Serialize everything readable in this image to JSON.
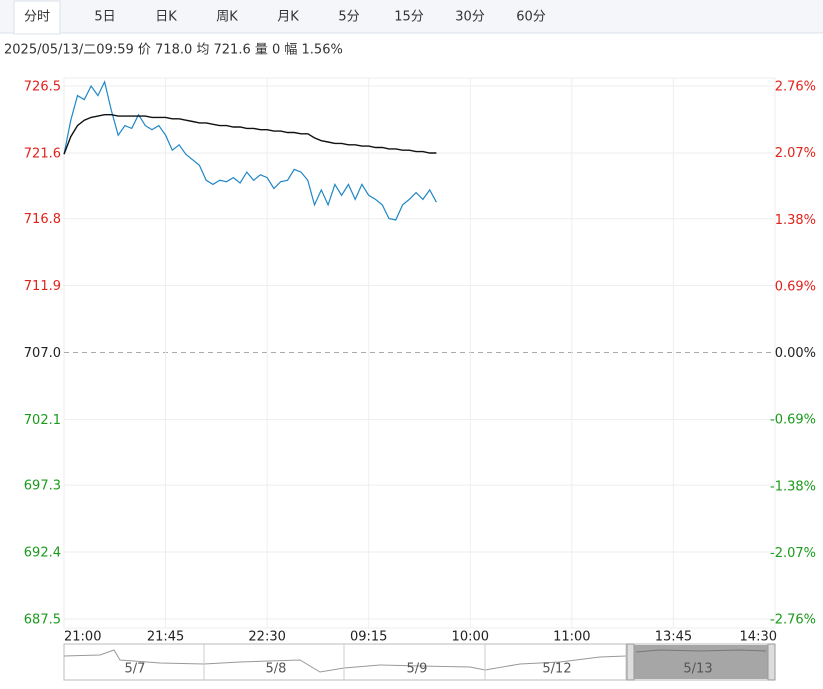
{
  "tabs": [
    "分时",
    "5日",
    "日K",
    "周K",
    "月K",
    "5分",
    "15分",
    "30分",
    "60分"
  ],
  "info": "2025/05/13/二09:59  价 718.0  均 721.6  量 0  幅 1.56%",
  "navigator": {
    "labels": [
      "5/7",
      "5/8",
      "5/9",
      "5/12",
      "5/13"
    ]
  },
  "chart_data": {
    "type": "line",
    "x": [
      0,
      3,
      6,
      9,
      12,
      15,
      18,
      21,
      24,
      27,
      30,
      33,
      36,
      39,
      42,
      45,
      48,
      51,
      54,
      57,
      60,
      63,
      66,
      69,
      72,
      75,
      78,
      81,
      84,
      87,
      90,
      93,
      96,
      99,
      102,
      105,
      108,
      111,
      114,
      117,
      120,
      123,
      126,
      129,
      132,
      135,
      138,
      141,
      144,
      147,
      150,
      153,
      156,
      159,
      162,
      165
    ],
    "series": [
      {
        "color": "#1f87c6",
        "values": [
          721.5,
          724.0,
          725.8,
          725.5,
          726.5,
          725.8,
          726.8,
          724.7,
          722.9,
          723.6,
          723.4,
          724.4,
          723.6,
          723.3,
          723.6,
          722.9,
          721.8,
          722.2,
          721.5,
          721.1,
          720.7,
          719.6,
          719.3,
          719.6,
          719.5,
          719.8,
          719.4,
          720.2,
          719.6,
          720.0,
          719.8,
          719.0,
          719.5,
          719.6,
          720.4,
          720.2,
          719.6,
          717.8,
          718.9,
          717.8,
          719.3,
          718.5,
          719.3,
          718.2,
          719.3,
          718.5,
          718.2,
          717.8,
          716.8,
          716.7,
          717.8,
          718.2,
          718.7,
          718.2,
          718.9,
          718.0
        ]
      },
      {
        "color": "#111111",
        "values": [
          721.5,
          722.8,
          723.6,
          724.0,
          724.2,
          724.3,
          724.4,
          724.4,
          724.3,
          724.3,
          724.3,
          724.3,
          724.3,
          724.2,
          724.2,
          724.2,
          724.1,
          724.1,
          724.0,
          723.9,
          723.8,
          723.8,
          723.7,
          723.6,
          723.6,
          723.5,
          723.5,
          723.4,
          723.4,
          723.3,
          723.3,
          723.2,
          723.2,
          723.1,
          723.1,
          723.0,
          723.0,
          722.7,
          722.5,
          722.4,
          722.3,
          722.3,
          722.2,
          722.2,
          722.1,
          722.1,
          722.0,
          722.0,
          721.9,
          721.9,
          721.8,
          721.8,
          721.7,
          721.7,
          721.6,
          721.6
        ]
      }
    ],
    "xlim": [
      0,
      315
    ],
    "xticks": [
      {
        "value": 0,
        "label": "21:00"
      },
      {
        "value": 45,
        "label": "21:45"
      },
      {
        "value": 90,
        "label": "22:30"
      },
      {
        "value": 135,
        "label": "09:15"
      },
      {
        "value": 180,
        "label": "10:00"
      },
      {
        "value": 225,
        "label": "11:00"
      },
      {
        "value": 270,
        "label": "13:45"
      },
      {
        "value": 315,
        "label": "14:30"
      }
    ],
    "ylim": [
      687.5,
      726.5
    ],
    "yticks": [
      {
        "value": 726.5,
        "label": "726.5"
      },
      {
        "value": 721.6,
        "label": "721.6"
      },
      {
        "value": 716.8,
        "label": "716.8"
      },
      {
        "value": 711.9,
        "label": "711.9"
      },
      {
        "value": 707.0,
        "label": "707.0"
      },
      {
        "value": 702.1,
        "label": "702.1"
      },
      {
        "value": 697.3,
        "label": "697.3"
      },
      {
        "value": 692.4,
        "label": "692.4"
      },
      {
        "value": 687.5,
        "label": "687.5"
      }
    ],
    "y2lim": [
      -2.76,
      2.76
    ],
    "y2ticks": [
      {
        "value": 2.76,
        "label": "2.76%"
      },
      {
        "value": 2.07,
        "label": "2.07%"
      },
      {
        "value": 1.38,
        "label": "1.38%"
      },
      {
        "value": 0.69,
        "label": "0.69%"
      },
      {
        "value": 0,
        "label": "0.00%"
      },
      {
        "value": -0.69,
        "label": "-0.69%"
      },
      {
        "value": -1.38,
        "label": "-1.38%"
      },
      {
        "value": -2.07,
        "label": "-2.07%"
      },
      {
        "value": -2.76,
        "label": "-2.76%"
      }
    ],
    "grid": true,
    "colors": {
      "up": "#e0231c",
      "flat": "#222222",
      "down": "#1b9a1b"
    }
  }
}
